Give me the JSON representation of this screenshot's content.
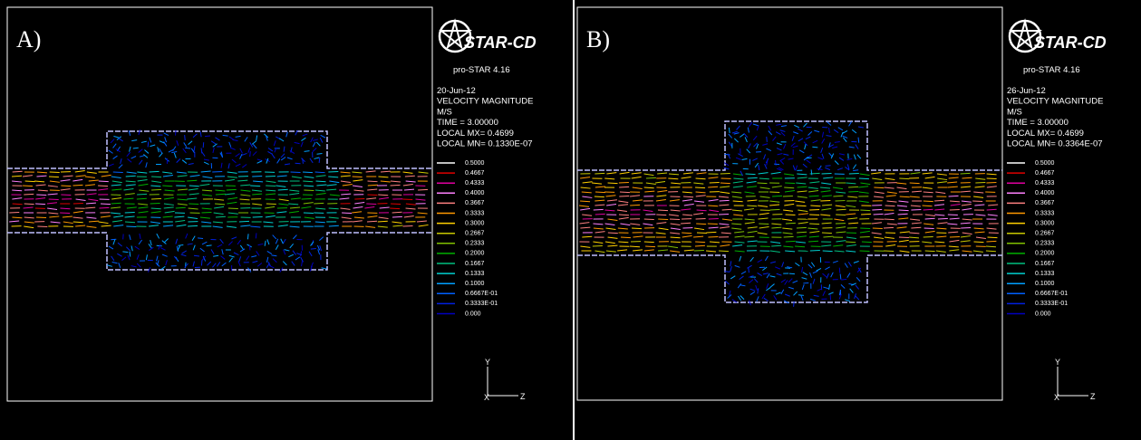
{
  "panels": [
    {
      "label": "A)",
      "logo": "STAR-CD",
      "version": "pro-STAR 4.16",
      "date": "20-Jun-12",
      "quantity": "VELOCITY MAGNITUDE",
      "unit": "M/S",
      "time": "TIME =  3.00000",
      "local_mx": "LOCAL MX= 0.4699",
      "local_mn": "LOCAL MN= 0.1330E-07",
      "legend": [
        {
          "label": "0.5000",
          "color": "#ffffff"
        },
        {
          "label": "0.4667",
          "color": "#e00000"
        },
        {
          "label": "0.4333",
          "color": "#e000a0"
        },
        {
          "label": "0.4000",
          "color": "#ff80ff"
        },
        {
          "label": "0.3667",
          "color": "#ff8080"
        },
        {
          "label": "0.3333",
          "color": "#ff9900"
        },
        {
          "label": "0.3000",
          "color": "#ffd000"
        },
        {
          "label": "0.2667",
          "color": "#c8c800"
        },
        {
          "label": "0.2333",
          "color": "#80c000"
        },
        {
          "label": "0.2000",
          "color": "#00b000"
        },
        {
          "label": "0.1667",
          "color": "#00c080"
        },
        {
          "label": "0.1333",
          "color": "#00d0d0"
        },
        {
          "label": "0.1000",
          "color": "#00a0ff"
        },
        {
          "label": "0.6667E-01",
          "color": "#0060ff"
        },
        {
          "label": "0.3333E-01",
          "color": "#0020e0"
        },
        {
          "label": "0.000",
          "color": "#0000c0"
        }
      ],
      "axes": {
        "y": "Y",
        "x": "X",
        "z": "Z"
      }
    },
    {
      "label": "B)",
      "logo": "STAR-CD",
      "version": "pro-STAR 4.16",
      "date": "26-Jun-12",
      "quantity": "VELOCITY MAGNITUDE",
      "unit": "M/S",
      "time": "TIME =  3.00000",
      "local_mx": "LOCAL MX= 0.4699",
      "local_mn": "LOCAL MN= 0.3364E-07",
      "legend": [
        {
          "label": "0.5000",
          "color": "#ffffff"
        },
        {
          "label": "0.4667",
          "color": "#e00000"
        },
        {
          "label": "0.4333",
          "color": "#e000a0"
        },
        {
          "label": "0.4000",
          "color": "#ff80ff"
        },
        {
          "label": "0.3667",
          "color": "#ff8080"
        },
        {
          "label": "0.3333",
          "color": "#ff9900"
        },
        {
          "label": "0.3000",
          "color": "#ffd000"
        },
        {
          "label": "0.2667",
          "color": "#c8c800"
        },
        {
          "label": "0.2333",
          "color": "#80c000"
        },
        {
          "label": "0.2000",
          "color": "#00b000"
        },
        {
          "label": "0.1667",
          "color": "#00c080"
        },
        {
          "label": "0.1333",
          "color": "#00d0d0"
        },
        {
          "label": "0.1000",
          "color": "#00a0ff"
        },
        {
          "label": "0.6667E-01",
          "color": "#0060ff"
        },
        {
          "label": "0.3333E-01",
          "color": "#0020e0"
        },
        {
          "label": "0.000",
          "color": "#0000c0"
        }
      ],
      "axes": {
        "y": "Y",
        "x": "X",
        "z": "Z"
      }
    }
  ]
}
